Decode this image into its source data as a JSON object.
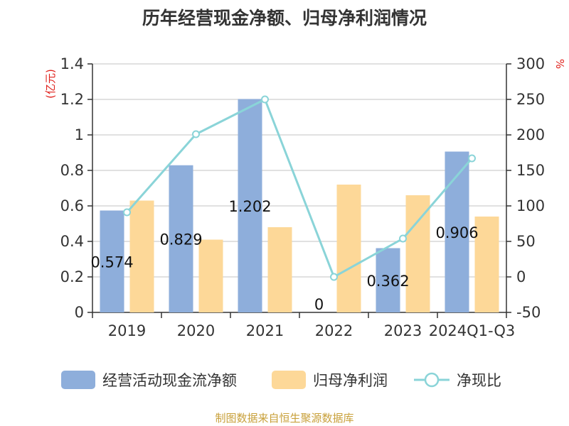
{
  "title": "历年经营现金净额、归母净利润情况",
  "source": "制图数据来自恒生聚源数据库",
  "colors": {
    "bar1": "#8eaedb",
    "bar2": "#fdd898",
    "line": "#8ad4d8",
    "unit": "#e0201b",
    "source": "#c8a03a"
  },
  "chart_data": {
    "type": "bar",
    "categories": [
      "2019",
      "2020",
      "2021",
      "2022",
      "2023",
      "2024Q1-Q3"
    ],
    "left_axis": {
      "unit": "(亿元)",
      "ylim": [
        0,
        1.4
      ],
      "ticks": [
        0,
        0.2,
        0.4,
        0.6,
        0.8,
        1,
        1.2,
        1.4
      ],
      "tick_labels": [
        "0",
        "0.2",
        "0.4",
        "0.6",
        "0.8",
        "1",
        "1.2",
        "1.4"
      ]
    },
    "right_axis": {
      "unit": "%",
      "ylim": [
        -50,
        300
      ],
      "ticks": [
        -50,
        0,
        50,
        100,
        150,
        200,
        250,
        300
      ],
      "tick_labels": [
        "-50",
        "0",
        "50",
        "100",
        "150",
        "200",
        "250",
        "300"
      ]
    },
    "series": [
      {
        "name": "经营活动现金流净额",
        "type": "bar",
        "axis": "left",
        "values": [
          0.574,
          0.829,
          1.202,
          0,
          0.362,
          0.906
        ],
        "labels": [
          "0.574",
          "0.829",
          "1.202",
          "0",
          "0.362",
          "0.906"
        ]
      },
      {
        "name": "归母净利润",
        "type": "bar",
        "axis": "left",
        "values": [
          0.63,
          0.41,
          0.48,
          0.72,
          0.66,
          0.54
        ]
      },
      {
        "name": "净现比",
        "type": "line",
        "axis": "right",
        "values": [
          91,
          201,
          250,
          0,
          54,
          167
        ]
      }
    ],
    "grid": true,
    "legend": "bottom"
  }
}
